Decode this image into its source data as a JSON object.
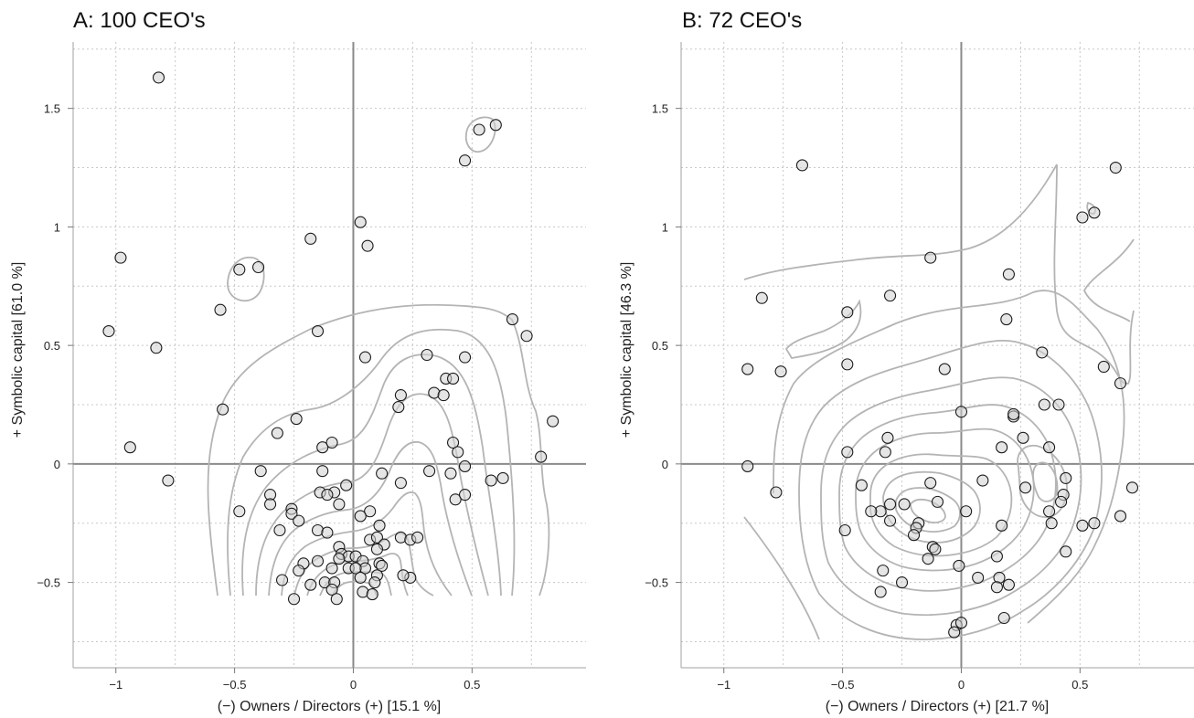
{
  "chart_data": [
    {
      "type": "scatter",
      "title": "A: 100 CEO's",
      "xlabel": "(−) Owners / Directors (+) [15.1 %]",
      "ylabel": "+ Symbolic capital [61.0 %]",
      "xlim": [
        -1.18,
        0.98
      ],
      "ylim": [
        -0.86,
        1.78
      ],
      "x_ticks": [
        -1,
        -0.5,
        0,
        0.5
      ],
      "x_tick_labels": [
        "−1",
        "−0.5",
        "0",
        "0.5"
      ],
      "y_ticks": [
        -0.5,
        0,
        0.5,
        1,
        1.5
      ],
      "y_tick_labels": [
        "−0.5",
        "0",
        "0.5",
        "1",
        "1.5"
      ],
      "grid": true,
      "grid_step": 0.25,
      "reference_lines": {
        "x": 0,
        "y": 0
      },
      "series": [
        {
          "points": [
            [
              -0.82,
              1.63
            ],
            [
              0.6,
              1.43
            ],
            [
              0.53,
              1.41
            ],
            [
              0.47,
              1.28
            ],
            [
              0.03,
              1.02
            ],
            [
              -0.18,
              0.95
            ],
            [
              0.06,
              0.92
            ],
            [
              -0.98,
              0.87
            ],
            [
              -0.48,
              0.82
            ],
            [
              -0.4,
              0.83
            ],
            [
              -0.56,
              0.65
            ],
            [
              -1.03,
              0.56
            ],
            [
              -0.15,
              0.56
            ],
            [
              -0.83,
              0.49
            ],
            [
              0.67,
              0.61
            ],
            [
              0.73,
              0.54
            ],
            [
              0.31,
              0.46
            ],
            [
              0.05,
              0.45
            ],
            [
              0.47,
              0.45
            ],
            [
              0.39,
              0.36
            ],
            [
              0.42,
              0.36
            ],
            [
              0.34,
              0.3
            ],
            [
              0.38,
              0.29
            ],
            [
              0.2,
              0.29
            ],
            [
              0.19,
              0.24
            ],
            [
              -0.55,
              0.23
            ],
            [
              -0.24,
              0.19
            ],
            [
              -0.32,
              0.13
            ],
            [
              0.84,
              0.18
            ],
            [
              -0.94,
              0.07
            ],
            [
              -0.13,
              0.07
            ],
            [
              -0.09,
              0.09
            ],
            [
              0.42,
              0.09
            ],
            [
              0.44,
              0.05
            ],
            [
              0.79,
              0.03
            ],
            [
              -0.39,
              -0.03
            ],
            [
              0.12,
              -0.04
            ],
            [
              0.32,
              -0.03
            ],
            [
              0.41,
              -0.04
            ],
            [
              0.47,
              -0.01
            ],
            [
              -0.13,
              -0.03
            ],
            [
              0.2,
              -0.08
            ],
            [
              0.58,
              -0.07
            ],
            [
              0.63,
              -0.06
            ],
            [
              -0.78,
              -0.07
            ],
            [
              -0.35,
              -0.13
            ],
            [
              -0.14,
              -0.12
            ],
            [
              -0.08,
              -0.12
            ],
            [
              -0.03,
              -0.09
            ],
            [
              -0.11,
              -0.13
            ],
            [
              0.43,
              -0.15
            ],
            [
              0.47,
              -0.13
            ],
            [
              -0.35,
              -0.17
            ],
            [
              -0.48,
              -0.2
            ],
            [
              -0.26,
              -0.19
            ],
            [
              -0.06,
              -0.17
            ],
            [
              -0.26,
              -0.21
            ],
            [
              0.07,
              -0.2
            ],
            [
              -0.23,
              -0.24
            ],
            [
              0.03,
              -0.22
            ],
            [
              0.11,
              -0.26
            ],
            [
              -0.31,
              -0.28
            ],
            [
              -0.15,
              -0.28
            ],
            [
              -0.11,
              -0.29
            ],
            [
              0.07,
              -0.32
            ],
            [
              0.1,
              -0.31
            ],
            [
              0.13,
              -0.34
            ],
            [
              0.2,
              -0.31
            ],
            [
              0.24,
              -0.32
            ],
            [
              0.27,
              -0.31
            ],
            [
              0.1,
              -0.36
            ],
            [
              -0.06,
              -0.35
            ],
            [
              -0.05,
              -0.38
            ],
            [
              -0.02,
              -0.39
            ],
            [
              -0.06,
              -0.4
            ],
            [
              -0.15,
              -0.41
            ],
            [
              0.01,
              -0.39
            ],
            [
              0.04,
              -0.41
            ],
            [
              -0.21,
              -0.42
            ],
            [
              -0.23,
              -0.45
            ],
            [
              0.11,
              -0.42
            ],
            [
              0.12,
              -0.43
            ],
            [
              0.05,
              -0.44
            ],
            [
              -0.09,
              -0.44
            ],
            [
              -0.02,
              -0.44
            ],
            [
              0.01,
              -0.44
            ],
            [
              0.1,
              -0.47
            ],
            [
              0.24,
              -0.48
            ],
            [
              -0.3,
              -0.49
            ],
            [
              -0.12,
              -0.5
            ],
            [
              0.03,
              -0.48
            ],
            [
              -0.18,
              -0.51
            ],
            [
              -0.08,
              -0.5
            ],
            [
              0.09,
              -0.5
            ],
            [
              -0.09,
              -0.53
            ],
            [
              0.04,
              -0.54
            ],
            [
              0.08,
              -0.55
            ],
            [
              -0.25,
              -0.57
            ],
            [
              -0.07,
              -0.57
            ],
            [
              0.21,
              -0.47
            ]
          ]
        }
      ],
      "density_contours": true
    },
    {
      "type": "scatter",
      "title": "B: 72 CEO's",
      "xlabel": "(−) Owners / Directors (+) [21.7 %]",
      "ylabel": "+ Symbolic capital [46.3 %]",
      "xlim": [
        -1.18,
        0.98
      ],
      "ylim": [
        -0.86,
        1.78
      ],
      "x_ticks": [
        -1,
        -0.5,
        0,
        0.5
      ],
      "x_tick_labels": [
        "−1",
        "−0.5",
        "0",
        "0.5"
      ],
      "y_ticks": [
        -0.5,
        0,
        0.5,
        1,
        1.5
      ],
      "y_tick_labels": [
        "−0.5",
        "0",
        "0.5",
        "1",
        "1.5"
      ],
      "grid": true,
      "grid_step": 0.25,
      "reference_lines": {
        "x": 0,
        "y": 0
      },
      "series": [
        {
          "points": [
            [
              -0.67,
              1.26
            ],
            [
              0.65,
              1.25
            ],
            [
              0.51,
              1.04
            ],
            [
              0.56,
              1.06
            ],
            [
              -0.13,
              0.87
            ],
            [
              0.2,
              0.8
            ],
            [
              -0.84,
              0.7
            ],
            [
              -0.3,
              0.71
            ],
            [
              -0.48,
              0.64
            ],
            [
              0.19,
              0.61
            ],
            [
              0.34,
              0.47
            ],
            [
              -0.9,
              0.4
            ],
            [
              -0.76,
              0.39
            ],
            [
              -0.48,
              0.42
            ],
            [
              -0.07,
              0.4
            ],
            [
              0.6,
              0.41
            ],
            [
              0.67,
              0.34
            ],
            [
              0.35,
              0.25
            ],
            [
              0.41,
              0.25
            ],
            [
              0.22,
              0.2
            ],
            [
              0.22,
              0.21
            ],
            [
              0.0,
              0.22
            ],
            [
              -0.31,
              0.11
            ],
            [
              0.26,
              0.11
            ],
            [
              0.17,
              0.07
            ],
            [
              0.37,
              0.07
            ],
            [
              -0.9,
              -0.01
            ],
            [
              -0.48,
              0.05
            ],
            [
              -0.32,
              0.05
            ],
            [
              0.72,
              -0.1
            ],
            [
              0.44,
              -0.06
            ],
            [
              -0.42,
              -0.09
            ],
            [
              -0.13,
              -0.08
            ],
            [
              0.09,
              -0.07
            ],
            [
              0.27,
              -0.1
            ],
            [
              -0.78,
              -0.12
            ],
            [
              0.43,
              -0.13
            ],
            [
              0.42,
              -0.16
            ],
            [
              -0.1,
              -0.16
            ],
            [
              -0.24,
              -0.17
            ],
            [
              -0.3,
              -0.17
            ],
            [
              0.02,
              -0.2
            ],
            [
              -0.34,
              -0.2
            ],
            [
              -0.38,
              -0.2
            ],
            [
              0.37,
              -0.2
            ],
            [
              0.38,
              -0.25
            ],
            [
              0.51,
              -0.26
            ],
            [
              0.56,
              -0.25
            ],
            [
              0.67,
              -0.22
            ],
            [
              -0.3,
              -0.24
            ],
            [
              -0.18,
              -0.25
            ],
            [
              -0.19,
              -0.27
            ],
            [
              -0.2,
              -0.3
            ],
            [
              0.17,
              -0.26
            ],
            [
              -0.49,
              -0.28
            ],
            [
              -0.12,
              -0.35
            ],
            [
              -0.11,
              -0.36
            ],
            [
              -0.14,
              -0.4
            ],
            [
              0.15,
              -0.39
            ],
            [
              -0.01,
              -0.43
            ],
            [
              -0.33,
              -0.45
            ],
            [
              0.07,
              -0.48
            ],
            [
              0.16,
              -0.48
            ],
            [
              0.15,
              -0.52
            ],
            [
              0.2,
              -0.51
            ],
            [
              -0.25,
              -0.5
            ],
            [
              -0.34,
              -0.54
            ],
            [
              0.18,
              -0.65
            ],
            [
              -0.02,
              -0.68
            ],
            [
              0.0,
              -0.67
            ],
            [
              -0.03,
              -0.71
            ],
            [
              0.44,
              -0.37
            ]
          ]
        }
      ],
      "density_contours": true
    }
  ]
}
